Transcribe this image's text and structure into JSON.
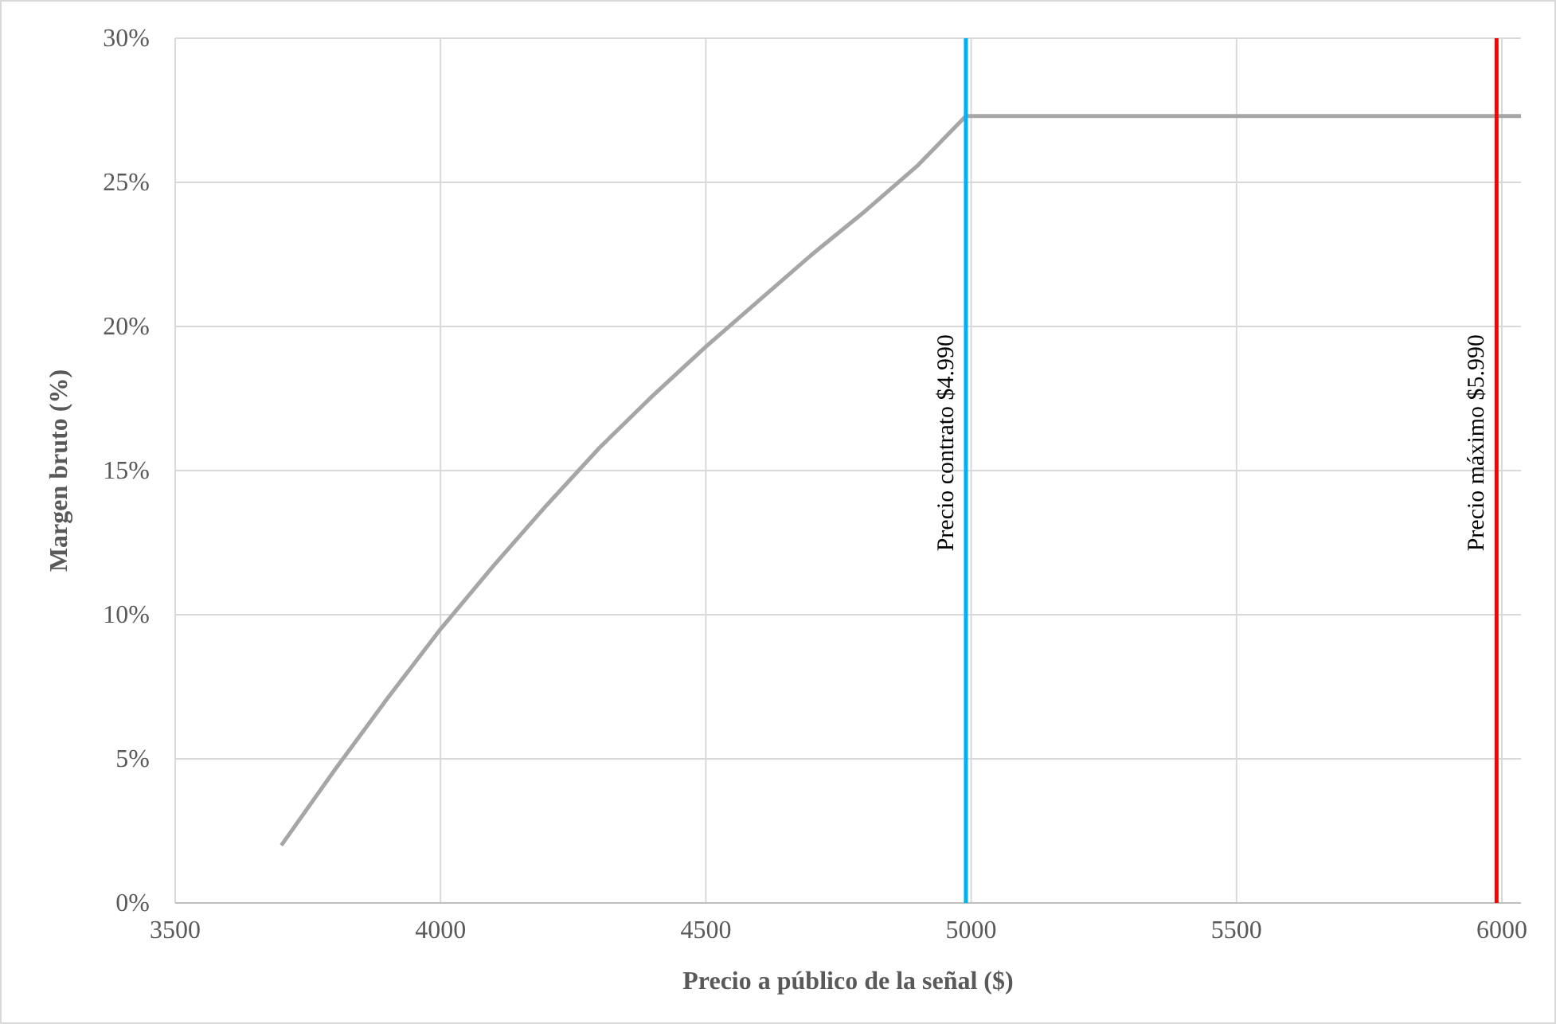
{
  "chart_data": {
    "type": "line",
    "xlabel": "Precio a público de la señal ($)",
    "ylabel": "Margen bruto (%)",
    "xlim": [
      3500,
      6036
    ],
    "xticks": [
      3500,
      4000,
      4500,
      5000,
      5500,
      6000
    ],
    "ylim": [
      0,
      30
    ],
    "yticks": [
      {
        "value": 0,
        "label": "0%"
      },
      {
        "value": 5,
        "label": "5%"
      },
      {
        "value": 10,
        "label": "10%"
      },
      {
        "value": 15,
        "label": "15%"
      },
      {
        "value": 20,
        "label": "20%"
      },
      {
        "value": 25,
        "label": "25%"
      },
      {
        "value": 30,
        "label": "30%"
      }
    ],
    "grid": true,
    "marker": "none",
    "line_style": "solid",
    "series": [
      {
        "color": "#a6a6a6",
        "x": [
          3700,
          3800,
          3900,
          4000,
          4100,
          4200,
          4300,
          4400,
          4500,
          4600,
          4700,
          4800,
          4900,
          4990,
          6036
        ],
        "values": [
          2.0,
          4.6,
          7.1,
          9.5,
          11.7,
          13.8,
          15.8,
          17.6,
          19.3,
          20.9,
          22.5,
          24.0,
          25.6,
          27.3,
          27.3
        ]
      }
    ],
    "ref_lines": [
      {
        "axis": "x",
        "value": 4990,
        "label": "Precio contrato $4.990",
        "color": "#00b0f0"
      },
      {
        "axis": "x",
        "value": 5990,
        "label": "Precio máximo $5.990",
        "color": "#ff0000"
      }
    ]
  }
}
